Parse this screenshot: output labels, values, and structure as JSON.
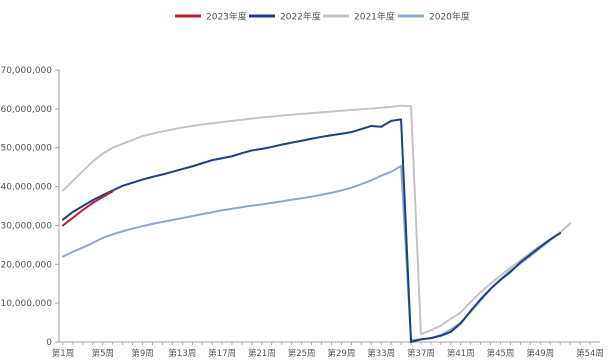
{
  "chart_data": {
    "type": "line",
    "title": "",
    "xlabel": "",
    "ylabel": "",
    "legend_position": "top-center",
    "grid": false,
    "x_count": 54,
    "ylim": [
      0,
      70000000
    ],
    "y_ticks": [
      {
        "value": 0,
        "label": "0"
      },
      {
        "value": 10000000,
        "label": "10,000,000"
      },
      {
        "value": 20000000,
        "label": "20,000,000"
      },
      {
        "value": 30000000,
        "label": "30,000,000"
      },
      {
        "value": 40000000,
        "label": "40,000,000"
      },
      {
        "value": 50000000,
        "label": "50,000,000"
      },
      {
        "value": 60000000,
        "label": "60,000,000"
      },
      {
        "value": 70000000,
        "label": "70,000,000"
      }
    ],
    "x_ticks": [
      {
        "week": 1,
        "label": "第1周"
      },
      {
        "week": 5,
        "label": "第5周"
      },
      {
        "week": 9,
        "label": "第9周"
      },
      {
        "week": 13,
        "label": "第13周"
      },
      {
        "week": 17,
        "label": "第17周"
      },
      {
        "week": 21,
        "label": "第21周"
      },
      {
        "week": 25,
        "label": "第25周"
      },
      {
        "week": 29,
        "label": "第29周"
      },
      {
        "week": 33,
        "label": "第33周"
      },
      {
        "week": 37,
        "label": "第37周"
      },
      {
        "week": 41,
        "label": "第41周"
      },
      {
        "week": 45,
        "label": "第45周"
      },
      {
        "week": 49,
        "label": "第49周"
      },
      {
        "week": 54,
        "label": "第54周"
      }
    ],
    "series": [
      {
        "name": "2023年度",
        "color": "#c0202a",
        "points": [
          [
            1,
            30000000
          ],
          [
            2,
            32000000
          ],
          [
            3,
            34000000
          ],
          [
            4,
            35800000
          ],
          [
            5,
            37300000
          ],
          [
            6,
            38800000
          ]
        ]
      },
      {
        "name": "2022年度",
        "color": "#1f3f85",
        "points": [
          [
            1,
            31500000
          ],
          [
            2,
            33500000
          ],
          [
            3,
            35000000
          ],
          [
            4,
            36500000
          ],
          [
            5,
            37800000
          ],
          [
            6,
            39000000
          ],
          [
            7,
            40200000
          ],
          [
            8,
            41000000
          ],
          [
            9,
            41800000
          ],
          [
            10,
            42500000
          ],
          [
            11,
            43100000
          ],
          [
            12,
            43800000
          ],
          [
            13,
            44500000
          ],
          [
            14,
            45200000
          ],
          [
            15,
            46000000
          ],
          [
            16,
            46800000
          ],
          [
            17,
            47300000
          ],
          [
            18,
            47800000
          ],
          [
            19,
            48600000
          ],
          [
            20,
            49300000
          ],
          [
            21,
            49700000
          ],
          [
            22,
            50200000
          ],
          [
            23,
            50800000
          ],
          [
            24,
            51300000
          ],
          [
            25,
            51800000
          ],
          [
            26,
            52300000
          ],
          [
            27,
            52800000
          ],
          [
            28,
            53200000
          ],
          [
            29,
            53600000
          ],
          [
            30,
            54000000
          ],
          [
            31,
            54800000
          ],
          [
            32,
            55600000
          ],
          [
            33,
            55400000
          ],
          [
            34,
            56900000
          ],
          [
            35,
            57300000
          ],
          [
            36,
            0
          ],
          [
            37,
            700000
          ],
          [
            38,
            1000000
          ],
          [
            39,
            1600000
          ],
          [
            40,
            2600000
          ],
          [
            41,
            4800000
          ],
          [
            42,
            8000000
          ],
          [
            43,
            11000000
          ],
          [
            44,
            13700000
          ],
          [
            45,
            16000000
          ],
          [
            46,
            18000000
          ],
          [
            47,
            20500000
          ],
          [
            48,
            22500000
          ],
          [
            49,
            24500000
          ],
          [
            50,
            26400000
          ],
          [
            51,
            28000000
          ]
        ]
      },
      {
        "name": "2021年度",
        "color": "#c4c4c4",
        "points": [
          [
            1,
            39000000
          ],
          [
            2,
            41500000
          ],
          [
            3,
            44000000
          ],
          [
            4,
            46500000
          ],
          [
            5,
            48500000
          ],
          [
            6,
            50000000
          ],
          [
            7,
            51000000
          ],
          [
            8,
            52000000
          ],
          [
            9,
            53000000
          ],
          [
            10,
            53600000
          ],
          [
            11,
            54200000
          ],
          [
            12,
            54700000
          ],
          [
            13,
            55200000
          ],
          [
            14,
            55600000
          ],
          [
            15,
            56000000
          ],
          [
            16,
            56300000
          ],
          [
            17,
            56600000
          ],
          [
            18,
            56900000
          ],
          [
            19,
            57200000
          ],
          [
            20,
            57500000
          ],
          [
            21,
            57800000
          ],
          [
            22,
            58000000
          ],
          [
            23,
            58300000
          ],
          [
            24,
            58500000
          ],
          [
            25,
            58700000
          ],
          [
            26,
            58900000
          ],
          [
            27,
            59100000
          ],
          [
            28,
            59300000
          ],
          [
            29,
            59500000
          ],
          [
            30,
            59700000
          ],
          [
            31,
            59900000
          ],
          [
            32,
            60100000
          ],
          [
            33,
            60300000
          ],
          [
            34,
            60500000
          ],
          [
            35,
            60800000
          ],
          [
            36,
            60700000
          ],
          [
            37,
            2000000
          ],
          [
            38,
            3000000
          ],
          [
            39,
            4200000
          ],
          [
            40,
            6000000
          ],
          [
            41,
            7600000
          ],
          [
            42,
            10300000
          ],
          [
            43,
            12800000
          ],
          [
            44,
            15000000
          ],
          [
            45,
            17100000
          ],
          [
            46,
            19100000
          ],
          [
            47,
            21000000
          ],
          [
            48,
            23000000
          ],
          [
            49,
            24700000
          ],
          [
            50,
            26400000
          ],
          [
            51,
            28300000
          ],
          [
            52,
            30500000
          ]
        ]
      },
      {
        "name": "2020年度",
        "color": "#8ea7cf",
        "points": [
          [
            1,
            22000000
          ],
          [
            2,
            23200000
          ],
          [
            3,
            24300000
          ],
          [
            4,
            25500000
          ],
          [
            5,
            26800000
          ],
          [
            6,
            27700000
          ],
          [
            7,
            28500000
          ],
          [
            8,
            29200000
          ],
          [
            9,
            29800000
          ],
          [
            10,
            30400000
          ],
          [
            11,
            30900000
          ],
          [
            12,
            31400000
          ],
          [
            13,
            31900000
          ],
          [
            14,
            32400000
          ],
          [
            15,
            32900000
          ],
          [
            16,
            33400000
          ],
          [
            17,
            33900000
          ],
          [
            18,
            34300000
          ],
          [
            19,
            34700000
          ],
          [
            20,
            35100000
          ],
          [
            21,
            35400000
          ],
          [
            22,
            35800000
          ],
          [
            23,
            36200000
          ],
          [
            24,
            36600000
          ],
          [
            25,
            37000000
          ],
          [
            26,
            37400000
          ],
          [
            27,
            37900000
          ],
          [
            28,
            38400000
          ],
          [
            29,
            39000000
          ],
          [
            30,
            39700000
          ],
          [
            31,
            40600000
          ],
          [
            32,
            41600000
          ],
          [
            33,
            42800000
          ],
          [
            34,
            43800000
          ],
          [
            35,
            45300000
          ],
          [
            36,
            500000
          ],
          [
            37,
            600000
          ],
          [
            38,
            1000000
          ],
          [
            39,
            1800000
          ],
          [
            40,
            3200000
          ],
          [
            41,
            5000000
          ],
          [
            42,
            7800000
          ],
          [
            43,
            10700000
          ],
          [
            44,
            13600000
          ],
          [
            45,
            16100000
          ],
          [
            46,
            18400000
          ],
          [
            47,
            20200000
          ],
          [
            48,
            22100000
          ],
          [
            49,
            24200000
          ],
          [
            50,
            26200000
          ],
          [
            51,
            28200000
          ],
          [
            52,
            30500000
          ]
        ]
      }
    ]
  }
}
